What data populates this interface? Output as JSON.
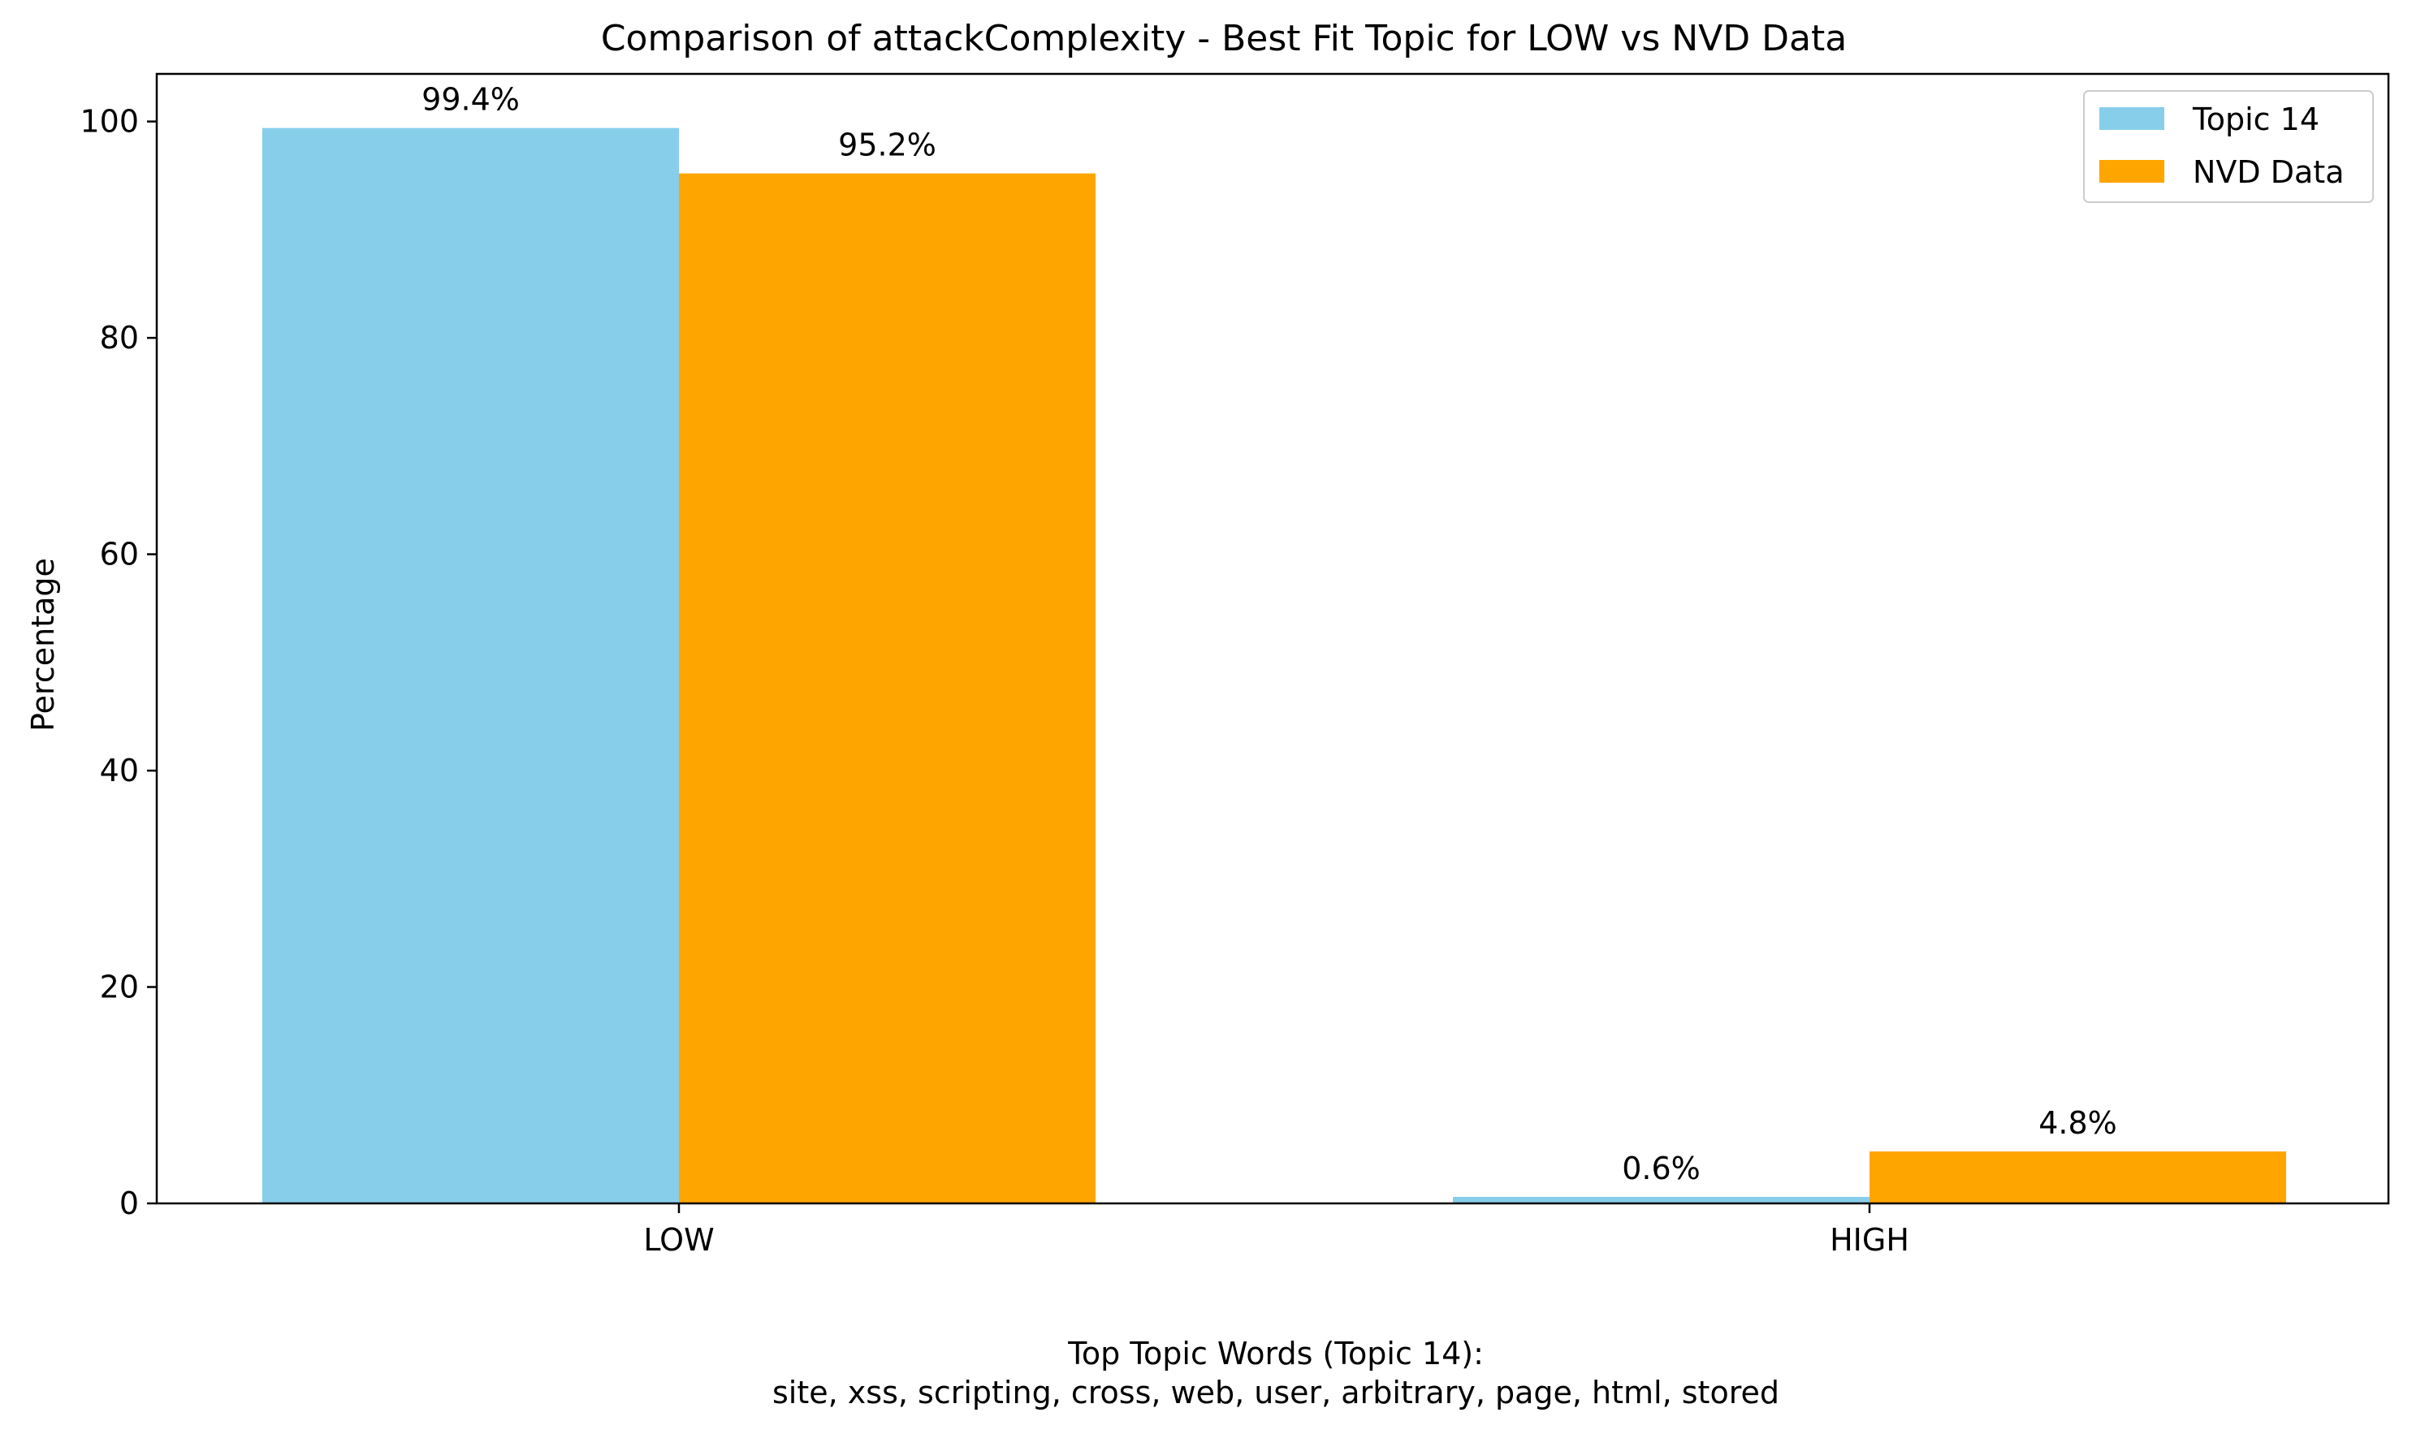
{
  "chart_data": {
    "type": "bar",
    "title": "Comparison of attackComplexity - Best Fit Topic for LOW vs NVD Data",
    "xlabel": "",
    "ylabel": "Percentage",
    "categories": [
      "LOW",
      "HIGH"
    ],
    "series": [
      {
        "name": "Topic 14",
        "values": [
          99.4,
          0.6
        ],
        "color": "#87CEEB",
        "labels": [
          "99.4%",
          "0.6%"
        ]
      },
      {
        "name": "NVD Data",
        "values": [
          95.2,
          4.8
        ],
        "color": "#FFA500",
        "labels": [
          "95.2%",
          "4.8%"
        ]
      }
    ],
    "ylim": [
      0,
      104.4
    ],
    "yticks": [
      0,
      20,
      40,
      60,
      80,
      100
    ],
    "grid": false,
    "legend": "top-right"
  },
  "caption": {
    "line1": "Top Topic Words (Topic 14):",
    "line2": "site,  xss,  scripting,  cross,  web,  user,  arbitrary,  page,  html,  stored"
  }
}
